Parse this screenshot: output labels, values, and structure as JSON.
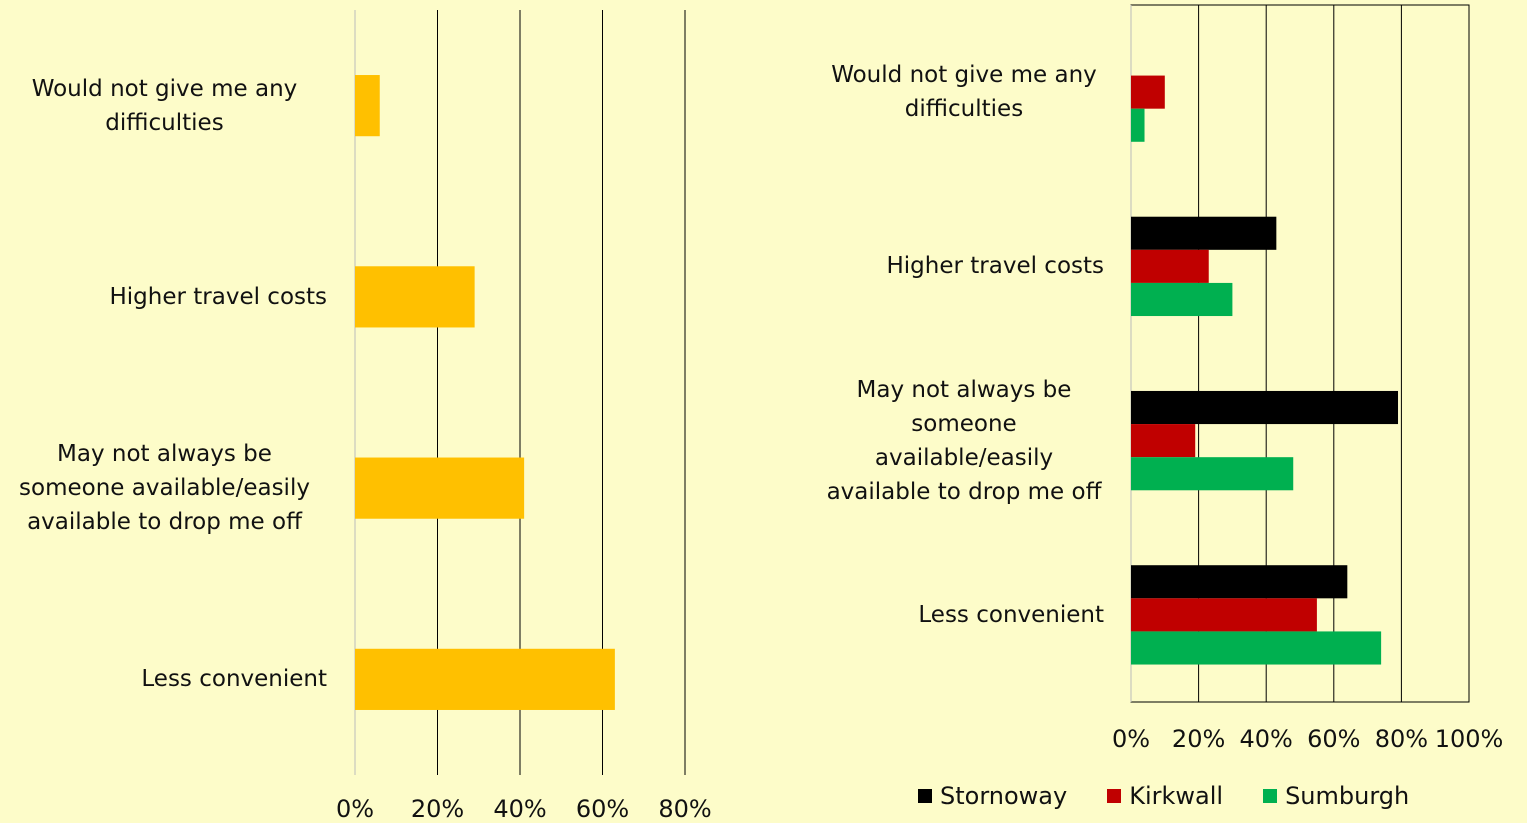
{
  "chart_data": [
    {
      "type": "bar",
      "orientation": "horizontal",
      "categories": [
        "Would not give me any difficulties",
        "Higher travel costs",
        "May not always be someone available/easily available to drop me off",
        "Less convenient"
      ],
      "values": [
        6,
        29,
        41,
        63
      ],
      "color": "#ffc000",
      "xlim": [
        0,
        80
      ],
      "xticks": [
        {
          "value": 0,
          "label": "0%"
        },
        {
          "value": 20,
          "label": "20%"
        },
        {
          "value": 40,
          "label": "40%"
        },
        {
          "value": 60,
          "label": "60%"
        },
        {
          "value": 80,
          "label": "80%"
        }
      ],
      "grid": true
    },
    {
      "type": "grouped_bar",
      "orientation": "horizontal",
      "categories": [
        "Would not give me any difficulties",
        "Higher travel costs",
        "May not always be someone available/easily available to drop me off",
        "Less convenient"
      ],
      "series": [
        {
          "name": "Stornoway",
          "color": "#000000",
          "values": [
            0,
            43,
            79,
            64
          ]
        },
        {
          "name": "Kirkwall",
          "color": "#c00000",
          "values": [
            10,
            23,
            19,
            55
          ]
        },
        {
          "name": "Sumburgh",
          "color": "#00b050",
          "values": [
            4,
            30,
            48,
            74
          ]
        }
      ],
      "xlim": [
        0,
        100
      ],
      "xticks": [
        {
          "value": 0,
          "label": "0%"
        },
        {
          "value": 20,
          "label": "20%"
        },
        {
          "value": 40,
          "label": "40%"
        },
        {
          "value": 60,
          "label": "60%"
        },
        {
          "value": 80,
          "label": "80%"
        },
        {
          "value": 100,
          "label": "100%"
        }
      ],
      "grid": true,
      "legend": "bottom"
    }
  ]
}
